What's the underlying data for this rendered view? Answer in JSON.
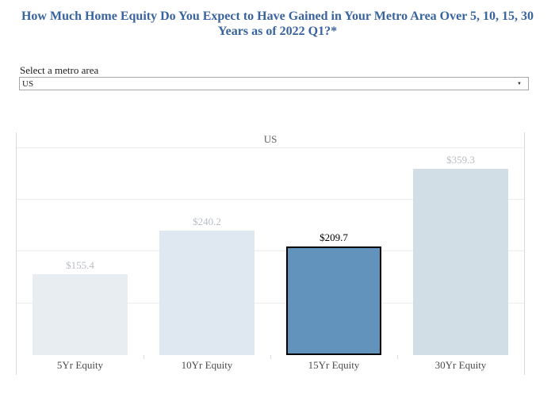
{
  "page": {
    "title_lines": [
      "How Much Home Equity Do You Expect to Have Gained in Your Metro Area Over 5, 10, 15, 30",
      "Years as of 2022 Q1?*"
    ]
  },
  "metro_selector": {
    "label": "Select a metro area",
    "selected_value": "US",
    "dropdown_arrow_icon": "▼"
  },
  "chart_data": {
    "type": "bar",
    "title": "US",
    "categories": [
      "5Yr Equity",
      "10Yr Equity",
      "15Yr Equity",
      "30Yr Equity"
    ],
    "values": [
      155.4,
      240.2,
      209.7,
      359.3
    ],
    "value_labels": [
      "$155.4",
      "$240.2",
      "$209.7",
      "$359.3"
    ],
    "bar_colors": [
      "#E8EDF2",
      "#DFE8F0",
      "#6193BD",
      "#D2DEE6"
    ],
    "value_label_colors": [
      "#B7BEC5",
      "#B7BEC5",
      "#000000",
      "#B7BEC5"
    ],
    "highlighted_index": 2,
    "highlight_border_color": "#000000",
    "xlabel": "",
    "ylabel": "",
    "ylim": [
      0,
      430
    ],
    "grid_interval": 100,
    "grid": true,
    "y_axis_labels_visible": false,
    "legend": false
  },
  "colors": {
    "title_blue": "#38639E",
    "chart_title_gray": "#606060",
    "axis_label_gray": "#4B4B4B",
    "gridline": "#ECECEC",
    "pane_border": "#D9D9D9",
    "select_border": "#A6A6A6"
  }
}
